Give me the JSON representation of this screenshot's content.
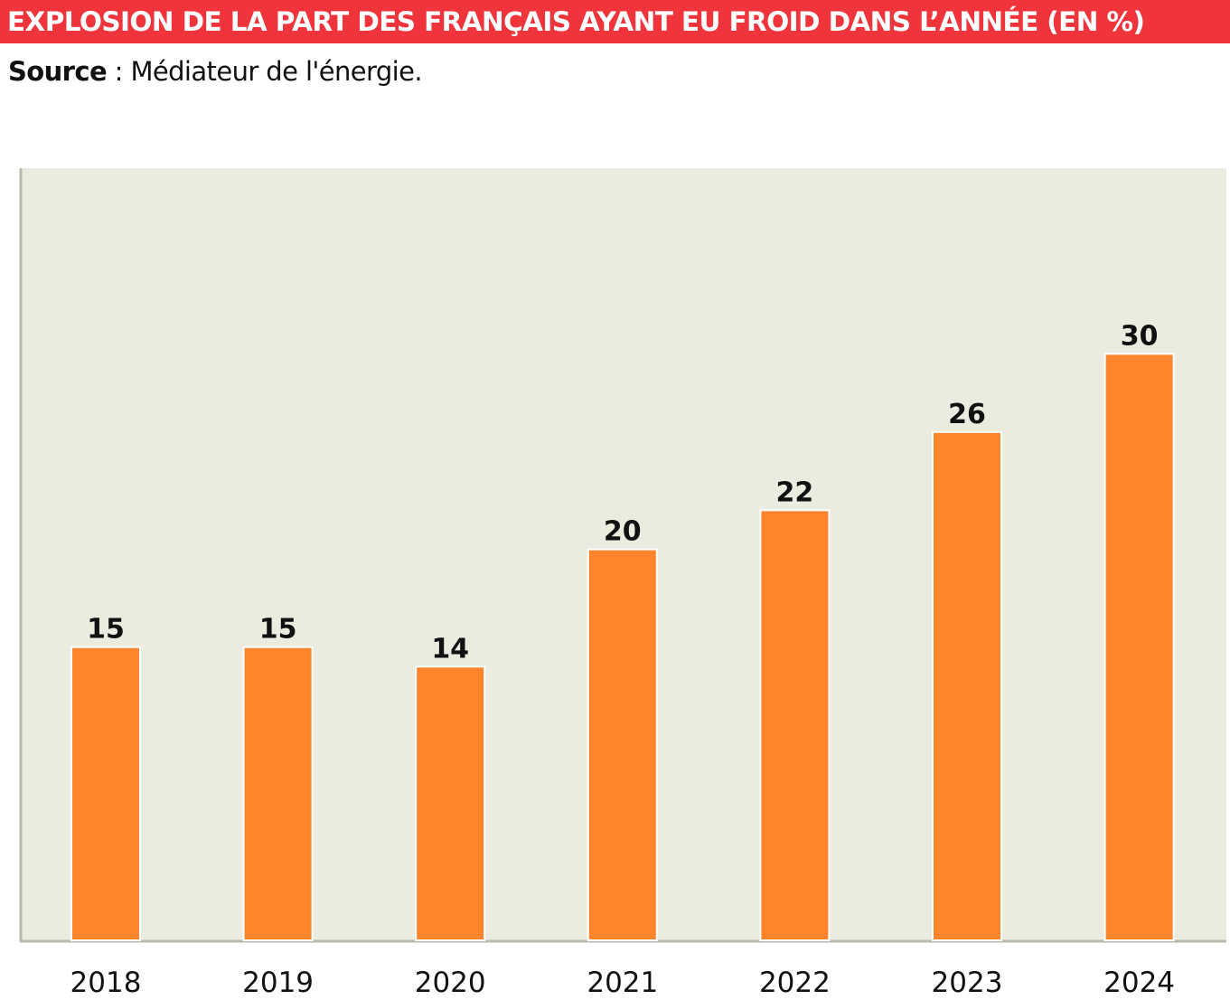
{
  "header": {
    "title": "EXPLOSION DE LA PART DES FRANÇAIS AYANT EU FROID DANS L’ANNÉE (EN %)",
    "source_label": "Source",
    "source_separator": " : ",
    "source_text": "Médiateur de l'énergie."
  },
  "colors": {
    "banner": "#f0343c",
    "bar": "#ff842b",
    "plot_background": "#ebebe0",
    "axis": "#b9b9b0"
  },
  "chart_data": {
    "type": "bar",
    "categories": [
      "2018",
      "2019",
      "2020",
      "2021",
      "2022",
      "2023",
      "2024"
    ],
    "values": [
      15,
      15,
      14,
      20,
      22,
      26,
      30
    ],
    "title": "EXPLOSION DE LA PART DES FRANÇAIS AYANT EU FROID DANS L’ANNÉE (EN %)",
    "xlabel": "",
    "ylabel": "",
    "ylim": [
      0,
      39.5
    ],
    "grid": false,
    "legend": "none",
    "data_labels": true
  }
}
